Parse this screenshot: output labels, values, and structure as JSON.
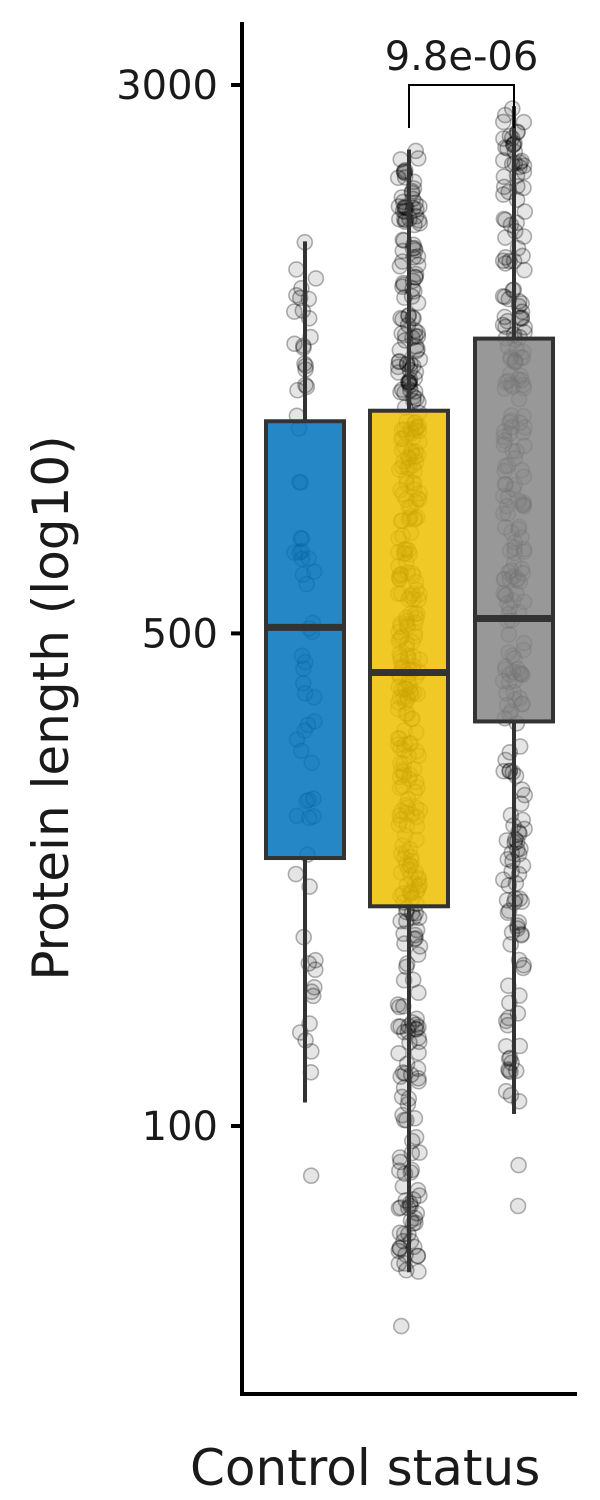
{
  "chart_data": {
    "type": "boxplot",
    "title": "",
    "xlabel": "Control status",
    "ylabel": "Protein length (log10)",
    "y_scale": "log10",
    "ylim": [
      45,
      3600
    ],
    "y_ticks": [
      100,
      500,
      3000
    ],
    "y_tick_labels": [
      "100",
      "500",
      "3000"
    ],
    "grid": false,
    "legend": "none",
    "groups": [
      {
        "color": "#0072BD",
        "q1": 240,
        "median": 510,
        "q3": 1000,
        "whisker_low": 108,
        "whisker_high": 1800
      },
      {
        "color": "#EFC000",
        "q1": 205,
        "median": 440,
        "q3": 1035,
        "whisker_low": 62,
        "whisker_high": 2430
      },
      {
        "color": "#868686",
        "q1": 375,
        "median": 525,
        "q3": 1310,
        "whisker_low": 104,
        "whisker_high": 2800
      }
    ],
    "outliers": [
      [
        {
          "y": 85
        }
      ],
      [
        {
          "y": 52
        }
      ],
      [
        {
          "y": 88
        },
        {
          "y": 77
        }
      ]
    ],
    "jitter_counts": [
      70,
      420,
      260
    ],
    "comparison": {
      "from_group": 1,
      "to_group": 2,
      "label": "9.8e-06"
    }
  }
}
